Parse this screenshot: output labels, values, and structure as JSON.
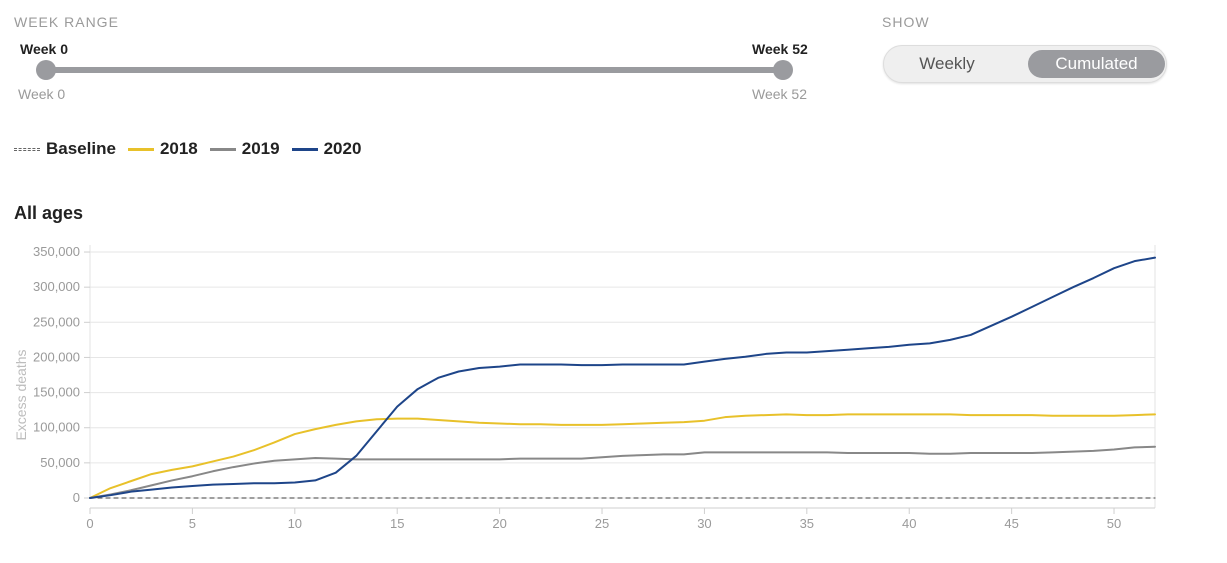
{
  "controls": {
    "week_range_label": "WEEK RANGE",
    "range_start_top": "Week 0",
    "range_end_top": "Week 52",
    "range_start_bottom": "Week 0",
    "range_end_bottom": "Week 52",
    "range_value": [
      0,
      52
    ],
    "show_label": "SHOW",
    "show_options": [
      "Weekly",
      "Cumulated"
    ],
    "show_selected": "Cumulated"
  },
  "legend": {
    "items": [
      {
        "label": "Baseline",
        "color": "#666666",
        "style": "dashed"
      },
      {
        "label": "2018",
        "color": "#e8c12a",
        "style": "solid"
      },
      {
        "label": "2019",
        "color": "#888888",
        "style": "solid"
      },
      {
        "label": "2020",
        "color": "#1e4589",
        "style": "solid"
      }
    ]
  },
  "panel": {
    "title": "All ages"
  },
  "chart_data": {
    "type": "line",
    "title": "All ages",
    "xlabel": "",
    "ylabel": "Excess deaths",
    "xlim": [
      0,
      52
    ],
    "ylim": [
      0,
      360000
    ],
    "x_ticks": [
      0,
      5,
      10,
      15,
      20,
      25,
      30,
      35,
      40,
      45,
      50
    ],
    "y_ticks": [
      0,
      50000,
      100000,
      150000,
      200000,
      250000,
      300000,
      350000
    ],
    "y_tick_labels": [
      "0",
      "50,000",
      "100,000",
      "150,000",
      "200,000",
      "250,000",
      "300,000",
      "350,000"
    ],
    "grid": true,
    "x": [
      0,
      1,
      2,
      3,
      4,
      5,
      6,
      7,
      8,
      9,
      10,
      11,
      12,
      13,
      14,
      15,
      16,
      17,
      18,
      19,
      20,
      21,
      22,
      23,
      24,
      25,
      26,
      27,
      28,
      29,
      30,
      31,
      32,
      33,
      34,
      35,
      36,
      37,
      38,
      39,
      40,
      41,
      42,
      43,
      44,
      45,
      46,
      47,
      48,
      49,
      50,
      51,
      52
    ],
    "series": [
      {
        "name": "Baseline",
        "color": "#666666",
        "dashed": true,
        "values": [
          0,
          0,
          0,
          0,
          0,
          0,
          0,
          0,
          0,
          0,
          0,
          0,
          0,
          0,
          0,
          0,
          0,
          0,
          0,
          0,
          0,
          0,
          0,
          0,
          0,
          0,
          0,
          0,
          0,
          0,
          0,
          0,
          0,
          0,
          0,
          0,
          0,
          0,
          0,
          0,
          0,
          0,
          0,
          0,
          0,
          0,
          0,
          0,
          0,
          0,
          0,
          0,
          0
        ]
      },
      {
        "name": "2018",
        "color": "#e8c12a",
        "values": [
          0,
          14000,
          24000,
          34000,
          40000,
          45000,
          52000,
          59000,
          68000,
          79000,
          91000,
          98000,
          104000,
          109000,
          112000,
          113000,
          113000,
          111000,
          109000,
          107000,
          106000,
          105000,
          105000,
          104000,
          104000,
          104000,
          105000,
          106000,
          107000,
          108000,
          110000,
          115000,
          117000,
          118000,
          119000,
          118000,
          118000,
          119000,
          119000,
          119000,
          119000,
          119000,
          119000,
          118000,
          118000,
          118000,
          118000,
          117000,
          117000,
          117000,
          117000,
          118000,
          119000
        ]
      },
      {
        "name": "2019",
        "color": "#888888",
        "values": [
          0,
          5000,
          11000,
          18000,
          25000,
          31000,
          38000,
          44000,
          49000,
          53000,
          55000,
          57000,
          56000,
          55000,
          55000,
          55000,
          55000,
          55000,
          55000,
          55000,
          55000,
          56000,
          56000,
          56000,
          56000,
          58000,
          60000,
          61000,
          62000,
          62000,
          65000,
          65000,
          65000,
          65000,
          65000,
          65000,
          65000,
          64000,
          64000,
          64000,
          64000,
          63000,
          63000,
          64000,
          64000,
          64000,
          64000,
          65000,
          66000,
          67000,
          69000,
          72000,
          73000
        ]
      },
      {
        "name": "2020",
        "color": "#1e4589",
        "values": [
          0,
          4000,
          9000,
          12000,
          15000,
          17000,
          19000,
          20000,
          21000,
          21000,
          22000,
          25000,
          36000,
          60000,
          95000,
          130000,
          155000,
          171000,
          180000,
          185000,
          187000,
          190000,
          190000,
          190000,
          189000,
          189000,
          190000,
          190000,
          190000,
          190000,
          194000,
          198000,
          201000,
          205000,
          207000,
          207000,
          209000,
          211000,
          213000,
          215000,
          218000,
          220000,
          225000,
          232000,
          245000,
          258000,
          272000,
          286000,
          300000,
          313000,
          327000,
          337000,
          342000
        ]
      }
    ]
  }
}
